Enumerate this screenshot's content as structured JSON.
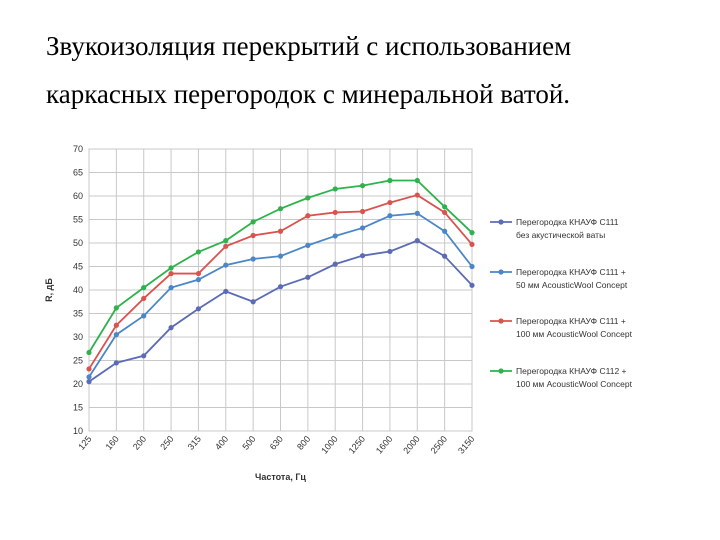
{
  "title": {
    "line1": "Звукоизоляция перекрытий с использованием",
    "line2": "каркасных перегородок с минеральной ватой."
  },
  "chart_data": {
    "type": "line",
    "xlabel": "Частота, Гц",
    "ylabel": "R, дБ",
    "categories": [
      "125",
      "160",
      "200",
      "250",
      "315",
      "400",
      "500",
      "630",
      "800",
      "1000",
      "1250",
      "1600",
      "2000",
      "2500",
      "3150"
    ],
    "ylim": [
      10,
      70
    ],
    "yticks": [
      10,
      15,
      20,
      25,
      30,
      35,
      40,
      45,
      50,
      55,
      60,
      65,
      70
    ],
    "grid": true,
    "legend_position": "right",
    "series": [
      {
        "legend_lines": [
          "Перегородка КНАУФ С111",
          "без акустической ваты"
        ],
        "color": "#5b6bb5",
        "values": [
          20.5,
          24.5,
          26,
          32,
          36,
          39.7,
          37.5,
          40.7,
          42.7,
          45.5,
          47.3,
          48.2,
          50.5,
          47.2,
          41
        ]
      },
      {
        "legend_lines": [
          "Перегородка КНАУФ С111 +",
          "50 мм AcousticWool Concept"
        ],
        "color": "#4a86c8",
        "values": [
          21.5,
          30.5,
          34.5,
          40.5,
          42.2,
          45.3,
          46.6,
          47.2,
          49.5,
          51.5,
          53.2,
          55.8,
          56.3,
          52.5,
          45
        ]
      },
      {
        "legend_lines": [
          "Перегородка КНАУФ С111 +",
          "100 мм AcousticWool Concept"
        ],
        "color": "#d9534f",
        "values": [
          23.2,
          32.5,
          38.2,
          43.5,
          43.5,
          49.3,
          51.6,
          52.5,
          55.8,
          56.5,
          56.7,
          58.6,
          60.2,
          56.5,
          49.7
        ]
      },
      {
        "legend_lines": [
          "Перегородка КНАУФ С112 +",
          "100 мм AcousticWool Concept"
        ],
        "color": "#2eb24b",
        "values": [
          26.7,
          36.2,
          40.5,
          44.7,
          48.1,
          50.5,
          54.5,
          57.3,
          59.6,
          61.5,
          62.2,
          63.3,
          63.3,
          57.7,
          52.2
        ]
      }
    ]
  }
}
